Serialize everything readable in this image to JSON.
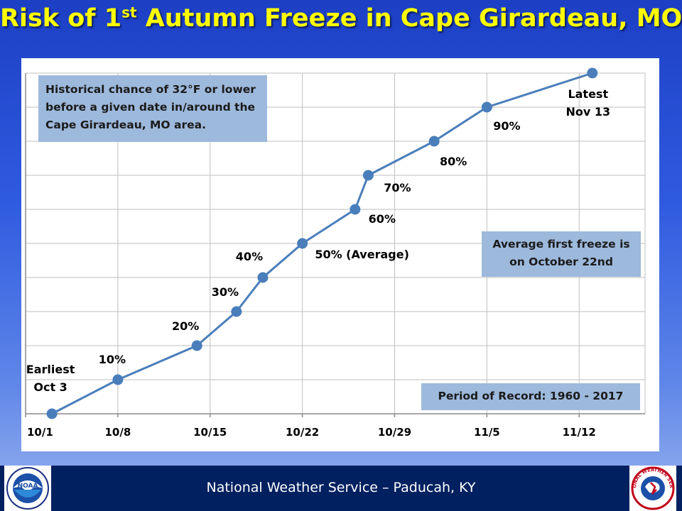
{
  "title": {
    "pre": "Risk of 1",
    "sup": "st",
    "post": " Autumn Freeze in Cape Girardeau, MO"
  },
  "callouts": {
    "historical_lines": [
      "Historical chance of 32°F or lower",
      "before a given date in/around the",
      "Cape Girardeau, MO area."
    ],
    "average_lines": [
      "Average first freeze is",
      "on October 22nd"
    ],
    "period": "Period of Record: 1960 - 2017"
  },
  "footer": {
    "text": "National Weather Service – Paducah, KY"
  },
  "logos": {
    "left": "NOAA",
    "right": "NATIONAL WEATHER SERVICE"
  },
  "colors": {
    "line": "#4a7ebb",
    "title": "#ffff00",
    "callout": "#9db9dc",
    "footer": "#002060"
  },
  "chart_data": {
    "type": "line",
    "x_axis": {
      "tick_labels": [
        "10/1",
        "10/8",
        "10/15",
        "10/22",
        "10/29",
        "11/5",
        "11/12"
      ],
      "ticks": [
        1,
        8,
        15,
        22,
        29,
        36,
        43
      ],
      "range": [
        1,
        48
      ]
    },
    "y_axis": {
      "range": [
        0,
        100
      ],
      "grid_step": 10,
      "tick_labels_shown": false
    },
    "grid": true,
    "series": [
      {
        "points": [
          {
            "x": 3,
            "y": 0,
            "label": [
              "Earliest",
              "Oct 3"
            ]
          },
          {
            "x": 8,
            "y": 10,
            "label": [
              "10%"
            ]
          },
          {
            "x": 14,
            "y": 20,
            "label": [
              "20%"
            ]
          },
          {
            "x": 17,
            "y": 30,
            "label": [
              "30%"
            ]
          },
          {
            "x": 19,
            "y": 40,
            "label": [
              "40%"
            ]
          },
          {
            "x": 22,
            "y": 50,
            "label": [
              "50% (Average)"
            ]
          },
          {
            "x": 26,
            "y": 60,
            "label": [
              "60%"
            ]
          },
          {
            "x": 27,
            "y": 70,
            "label": [
              "70%"
            ]
          },
          {
            "x": 32,
            "y": 80,
            "label": [
              "80%"
            ]
          },
          {
            "x": 36,
            "y": 90,
            "label": [
              "90%"
            ]
          },
          {
            "x": 44,
            "y": 100,
            "label": [
              "Latest",
              "Nov 13"
            ]
          }
        ]
      }
    ]
  }
}
